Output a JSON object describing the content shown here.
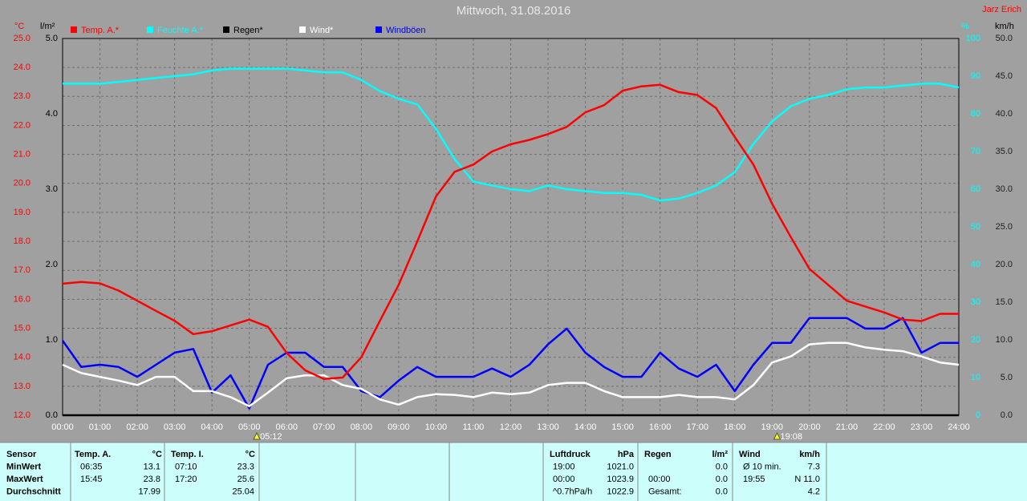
{
  "chart_data": {
    "type": "line",
    "title": "Mittwoch, 31.08.2016",
    "author": "Jarz Erich",
    "y_unit": "°C",
    "y2_unit": "l/m²",
    "y3_unit": "%",
    "y4_unit": "km/h",
    "x": [
      0,
      0.5,
      1,
      1.5,
      2,
      2.5,
      3,
      3.5,
      4,
      4.5,
      5,
      5.5,
      6,
      6.5,
      7,
      7.5,
      8,
      8.5,
      9,
      9.5,
      10,
      10.5,
      11,
      11.5,
      12,
      12.5,
      13,
      13.5,
      14,
      14.5,
      15,
      15.5,
      16,
      16.5,
      17,
      17.5,
      18,
      18.5,
      19,
      19.5,
      20,
      20.5,
      21,
      21.5,
      22,
      22.5,
      23,
      23.5,
      24
    ],
    "xlim": [
      0,
      24
    ],
    "xticks": [
      {
        "value": 0,
        "label": "00:00"
      },
      {
        "value": 1,
        "label": "01:00"
      },
      {
        "value": 2,
        "label": "02:00"
      },
      {
        "value": 3,
        "label": "03:00"
      },
      {
        "value": 4,
        "label": "04:00"
      },
      {
        "value": 5,
        "label": "05:00"
      },
      {
        "value": 6,
        "label": "06:00"
      },
      {
        "value": 7,
        "label": "07:00"
      },
      {
        "value": 8,
        "label": "08:00"
      },
      {
        "value": 9,
        "label": "09:00"
      },
      {
        "value": 10,
        "label": "10:00"
      },
      {
        "value": 11,
        "label": "11:00"
      },
      {
        "value": 12,
        "label": "12:00"
      },
      {
        "value": 13,
        "label": "13:00"
      },
      {
        "value": 14,
        "label": "14:00"
      },
      {
        "value": 15,
        "label": "15:00"
      },
      {
        "value": 16,
        "label": "16:00"
      },
      {
        "value": 17,
        "label": "17:00"
      },
      {
        "value": 18,
        "label": "18:00"
      },
      {
        "value": 19,
        "label": "19:00"
      },
      {
        "value": 20,
        "label": "20:00"
      },
      {
        "value": 21,
        "label": "21:00"
      },
      {
        "value": 22,
        "label": "22:00"
      },
      {
        "value": 23,
        "label": "23:00"
      },
      {
        "value": 24,
        "label": "24:00"
      }
    ],
    "ylim": [
      12,
      25
    ],
    "yticks": [
      {
        "value": 12,
        "label": "12.0"
      },
      {
        "value": 13,
        "label": "13.0"
      },
      {
        "value": 14,
        "label": "14.0"
      },
      {
        "value": 15,
        "label": "15.0"
      },
      {
        "value": 16,
        "label": "16.0"
      },
      {
        "value": 17,
        "label": "17.0"
      },
      {
        "value": 18,
        "label": "18.0"
      },
      {
        "value": 19,
        "label": "19.0"
      },
      {
        "value": 20,
        "label": "20.0"
      },
      {
        "value": 21,
        "label": "21.0"
      },
      {
        "value": 22,
        "label": "22.0"
      },
      {
        "value": 23,
        "label": "23.0"
      },
      {
        "value": 24,
        "label": "24.0"
      },
      {
        "value": 25,
        "label": "25.0"
      }
    ],
    "y2lim": [
      0,
      5
    ],
    "y2ticks": [
      {
        "value": 0,
        "label": "0.0"
      },
      {
        "value": 1,
        "label": "1.0"
      },
      {
        "value": 2,
        "label": "2.0"
      },
      {
        "value": 3,
        "label": "3.0"
      },
      {
        "value": 4,
        "label": "4.0"
      },
      {
        "value": 5,
        "label": "5.0"
      }
    ],
    "y3lim": [
      0,
      100
    ],
    "y3ticks": [
      0,
      10,
      20,
      30,
      40,
      50,
      60,
      70,
      80,
      90,
      100
    ],
    "y4lim": [
      0,
      50
    ],
    "y4ticks": [
      {
        "value": 0,
        "label": "0.0"
      },
      {
        "value": 5,
        "label": "5.0"
      },
      {
        "value": 10,
        "label": "10.0"
      },
      {
        "value": 15,
        "label": "15.0"
      },
      {
        "value": 20,
        "label": "20.0"
      },
      {
        "value": 25,
        "label": "25.0"
      },
      {
        "value": 30,
        "label": "30.0"
      },
      {
        "value": 35,
        "label": "35.0"
      },
      {
        "value": 40,
        "label": "40.0"
      },
      {
        "value": 45,
        "label": "45.0"
      },
      {
        "value": 50,
        "label": "50.0"
      }
    ],
    "grid": true,
    "series": [
      {
        "name": "Temp. A.*",
        "color": "#ff0000",
        "axis": "y",
        "values": [
          16.54,
          16.6,
          16.55,
          16.3,
          15.95,
          15.6,
          15.26,
          14.8,
          14.9,
          15.1,
          15.3,
          15.05,
          14.15,
          13.55,
          13.25,
          13.3,
          14.0,
          15.26,
          16.5,
          18.0,
          19.55,
          20.4,
          20.65,
          21.1,
          21.35,
          21.5,
          21.7,
          21.95,
          22.45,
          22.7,
          23.2,
          23.35,
          23.4,
          23.15,
          23.05,
          22.6,
          21.6,
          20.65,
          19.3,
          18.15,
          17.05,
          16.5,
          15.95,
          15.75,
          15.55,
          15.3,
          15.25,
          15.5,
          15.5
        ]
      },
      {
        "name": "Feuchte A.*",
        "color": "#00ffff",
        "axis": "y3",
        "values": [
          88,
          88,
          88,
          88.5,
          89,
          89.5,
          90,
          90.5,
          91.5,
          92,
          92,
          92,
          92,
          91.5,
          91,
          91,
          89,
          86,
          84,
          82.5,
          76,
          68,
          62,
          61,
          60,
          59.5,
          61,
          60,
          59.5,
          59,
          59,
          58.5,
          57,
          57.5,
          59,
          61,
          64.5,
          72,
          78,
          82,
          84,
          85,
          86.5,
          87,
          87,
          87.5,
          88,
          88,
          87
        ]
      },
      {
        "name": "Regen*",
        "color": "#000000",
        "axis": "y2",
        "values": [
          0,
          0,
          0,
          0,
          0,
          0,
          0,
          0,
          0,
          0,
          0,
          0,
          0,
          0,
          0,
          0,
          0,
          0,
          0,
          0,
          0,
          0,
          0,
          0,
          0,
          0,
          0,
          0,
          0,
          0,
          0,
          0,
          0,
          0,
          0,
          0,
          0,
          0,
          0,
          0,
          0,
          0,
          0,
          0,
          0,
          0,
          0,
          0,
          0
        ]
      },
      {
        "name": "Wind*",
        "color": "#ffffff",
        "axis": "y4",
        "values": [
          6.7,
          5.6,
          5.1,
          4.6,
          4.0,
          5.1,
          5.1,
          3.2,
          3.2,
          2.4,
          1.2,
          3.0,
          4.9,
          5.3,
          5.3,
          4.0,
          3.5,
          2.1,
          1.4,
          2.4,
          2.8,
          2.7,
          2.4,
          3.0,
          2.8,
          3.0,
          4.0,
          4.3,
          4.3,
          3.2,
          2.4,
          2.4,
          2.4,
          2.7,
          2.4,
          2.4,
          2.1,
          4.0,
          7.0,
          7.8,
          9.4,
          9.6,
          9.6,
          9.0,
          8.7,
          8.5,
          7.8,
          7.0,
          6.7
        ]
      },
      {
        "name": "Windböen",
        "color": "#0000ff",
        "axis": "y4",
        "values": [
          9.9,
          6.4,
          6.7,
          6.4,
          5.1,
          6.7,
          8.3,
          8.8,
          3.0,
          5.3,
          0.9,
          6.7,
          8.3,
          8.3,
          6.4,
          6.4,
          3.2,
          2.4,
          4.6,
          6.4,
          5.1,
          5.1,
          5.1,
          6.2,
          5.1,
          6.7,
          9.4,
          11.5,
          8.3,
          6.4,
          5.1,
          5.1,
          8.3,
          6.2,
          5.1,
          6.7,
          3.2,
          6.7,
          9.6,
          9.6,
          12.9,
          12.9,
          12.9,
          11.5,
          11.5,
          12.9,
          8.3,
          9.6,
          9.6
        ]
      }
    ],
    "annotations": [
      {
        "x": 5.2,
        "label": "05:12"
      },
      {
        "x": 19.1333,
        "label": "19:08"
      }
    ]
  },
  "summary": {
    "first_header": "Sensor",
    "row_labels": [
      "MinWert",
      "MaxWert",
      "Durchschnitt"
    ],
    "columns": [
      {
        "title": "Temp. A.",
        "unit": "°C",
        "rows": [
          [
            "06:35",
            "13.1"
          ],
          [
            "15:45",
            "23.8"
          ],
          [
            "17.99"
          ]
        ]
      },
      {
        "title": "Temp. I.",
        "unit": "°C",
        "rows": [
          [
            "07:10",
            "23.3"
          ],
          [
            "17:20",
            "25.6"
          ],
          [
            "25.04"
          ]
        ]
      },
      {
        "title": "Luftdruck",
        "unit": "hPa",
        "rows": [
          [
            "19:00",
            "1021.0"
          ],
          [
            "00:00",
            "1023.9"
          ],
          [
            "^0.7hPa/h",
            "1022.9"
          ]
        ]
      },
      {
        "title": "Regen",
        "unit": "l/m²",
        "rows": [
          [
            "0.0"
          ],
          [
            "00:00",
            "0.0"
          ],
          [
            "Gesamt:",
            "0.0"
          ]
        ]
      },
      {
        "title": "Wind",
        "unit": "km/h",
        "rows": [
          [
            "Ø 10 min.",
            "7.3"
          ],
          [
            "19:55",
            "N 11.0"
          ],
          [
            "4.2"
          ]
        ]
      }
    ]
  }
}
